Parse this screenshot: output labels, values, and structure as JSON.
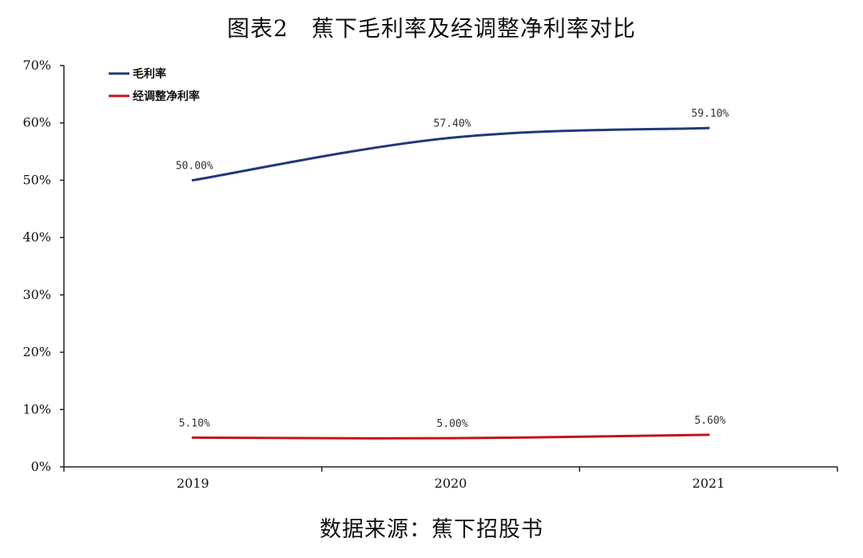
{
  "title": "图表2　蕉下毛利率及经调整净利率对比",
  "source": "数据来源：蕉下招股书",
  "chart_data": {
    "type": "line",
    "categories": [
      "2019",
      "2020",
      "2021"
    ],
    "series": [
      {
        "name": "毛利率",
        "values": [
          50.0,
          57.4,
          59.1
        ],
        "labels": [
          "50.00%",
          "57.40%",
          "59.10%"
        ],
        "color": "#1f3a7a"
      },
      {
        "name": "经调整净利率",
        "values": [
          5.1,
          5.0,
          5.6
        ],
        "labels": [
          "5.10%",
          "5.00%",
          "5.60%"
        ],
        "color": "#c0141a"
      }
    ],
    "ylim": [
      0,
      70
    ],
    "yticks": [
      "0%",
      "10%",
      "20%",
      "30%",
      "40%",
      "50%",
      "60%",
      "70%"
    ],
    "grid": false,
    "legend_position": "top-left"
  }
}
